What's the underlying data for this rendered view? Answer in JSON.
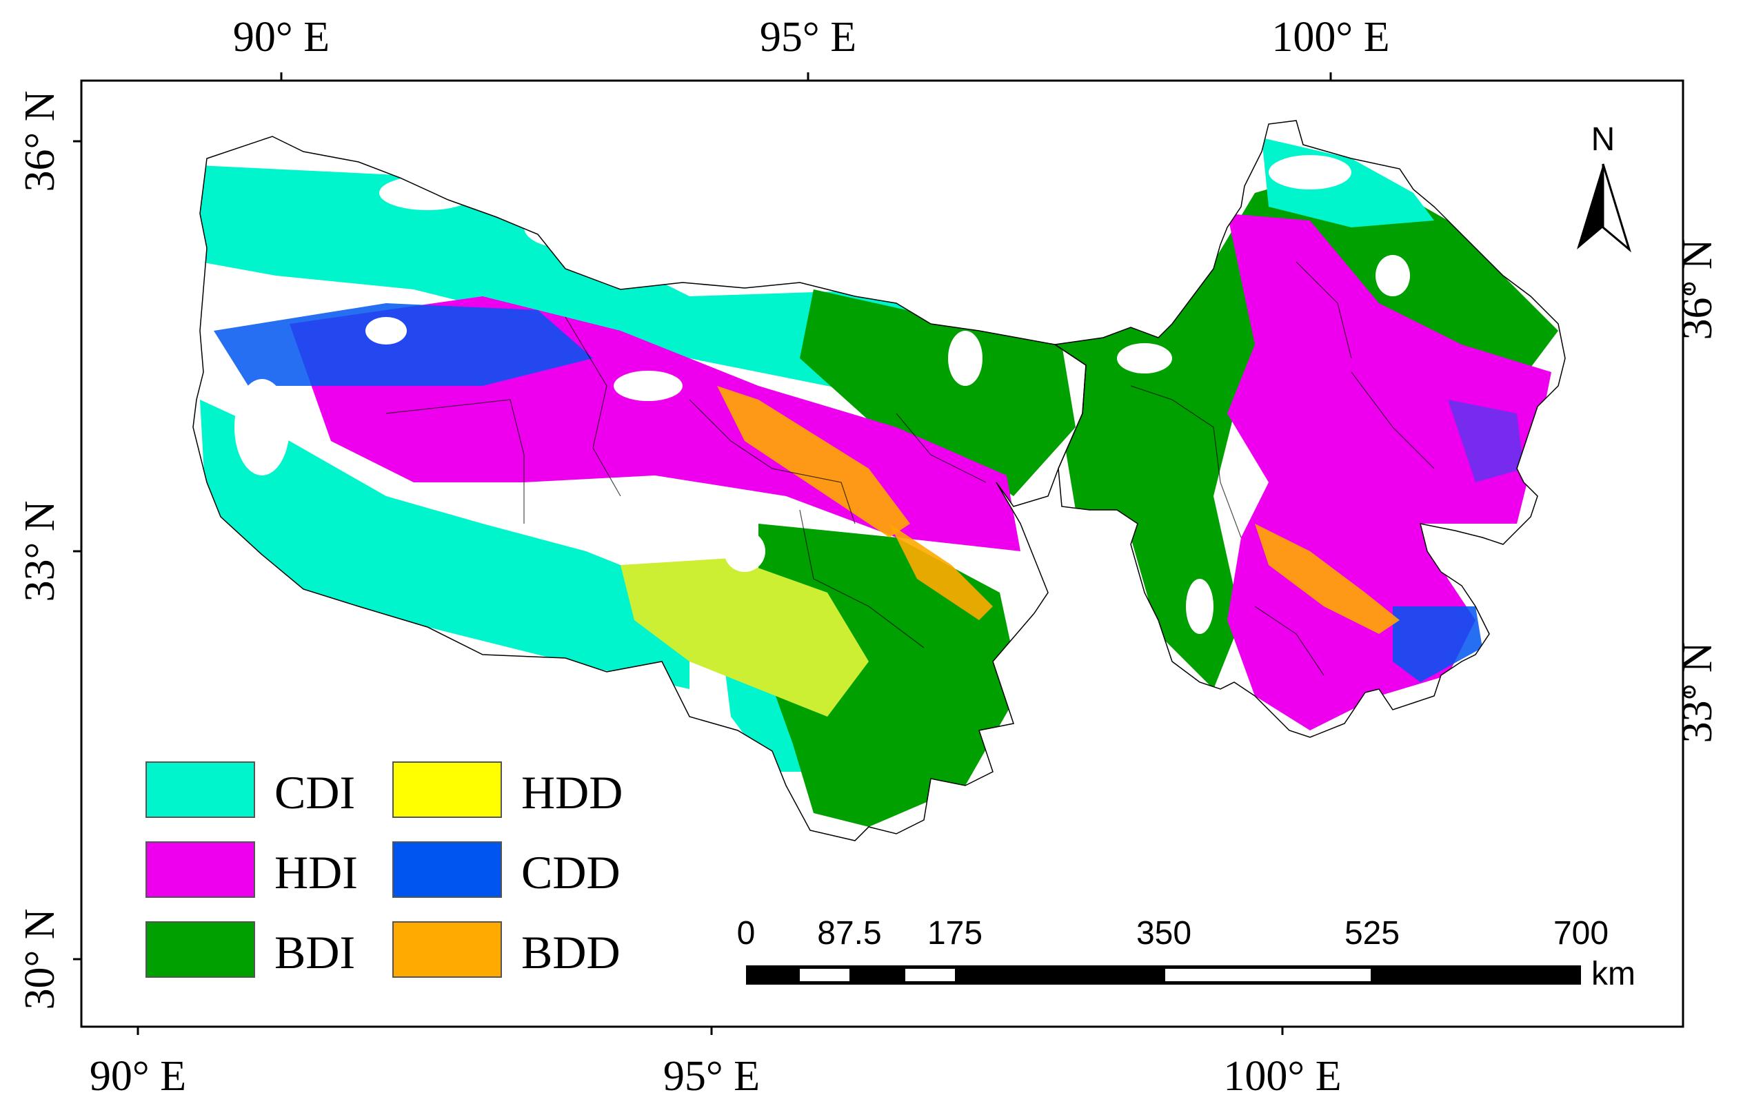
{
  "map": {
    "top_axis_labels": [
      "90° E",
      "95° E",
      "100° E"
    ],
    "bottom_axis_labels": [
      "90° E",
      "95° E",
      "100° E"
    ],
    "left_axis_labels": [
      "36° N",
      "33° N",
      "30° N"
    ],
    "right_axis_labels": [
      "36° N",
      "33° N"
    ],
    "north_arrow_label": "N"
  },
  "legend": {
    "items": [
      {
        "label": "CDI",
        "color": "#00F5CC"
      },
      {
        "label": "HDI",
        "color": "#EE00EE"
      },
      {
        "label": "BDI",
        "color": "#00A000"
      },
      {
        "label": "HDD",
        "color": "#FFFF00"
      },
      {
        "label": "CDD",
        "color": "#0055F0"
      },
      {
        "label": "BDD",
        "color": "#FFAA00"
      }
    ]
  },
  "scale_bar": {
    "ticks": [
      "0",
      "87.5",
      "175",
      "350",
      "525",
      "700"
    ],
    "unit": "km"
  }
}
